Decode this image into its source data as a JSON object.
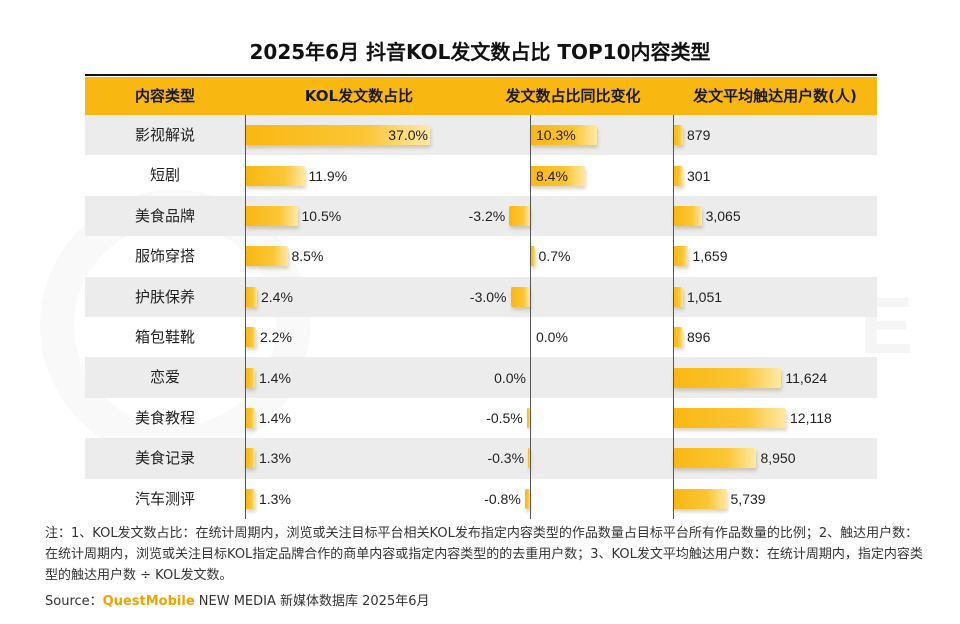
{
  "title": "2025年6月 抖音KOL发文数占比 TOP10内容类型",
  "columns": {
    "category": "内容类型",
    "share": "KOL发文数占比",
    "yoy": "发文数占比同比变化",
    "reach": "发文平均触达用户数(人)"
  },
  "chart_data": {
    "type": "bar",
    "categories": [
      "影视解说",
      "短剧",
      "美食品牌",
      "服饰穿搭",
      "护肤保养",
      "箱包鞋靴",
      "恋爱",
      "美食教程",
      "美食记录",
      "汽车测评"
    ],
    "series": [
      {
        "name": "KOL发文数占比",
        "values": [
          37.0,
          11.9,
          10.5,
          8.5,
          2.4,
          2.2,
          1.4,
          1.4,
          1.3,
          1.3
        ],
        "labels": [
          "37.0%",
          "11.9%",
          "10.5%",
          "8.5%",
          "2.4%",
          "2.2%",
          "1.4%",
          "1.4%",
          "1.3%",
          "1.3%"
        ]
      },
      {
        "name": "发文数占比同比变化",
        "values": [
          10.3,
          8.4,
          -3.2,
          0.7,
          -3.0,
          0.0,
          0.0,
          -0.5,
          -0.3,
          -0.8
        ],
        "labels": [
          "10.3%",
          "8.4%",
          "-3.2%",
          "0.7%",
          "-3.0%",
          "0.0%",
          "0.0%",
          "-0.5%",
          "-0.3%",
          "-0.8%"
        ]
      },
      {
        "name": "发文平均触达用户数(人)",
        "values": [
          879,
          301,
          3065,
          1659,
          1051,
          896,
          11624,
          12118,
          8950,
          5739
        ],
        "labels": [
          "879",
          "301",
          "3,065",
          "1,659",
          "1,051",
          "896",
          "11,624",
          "12,118",
          "8,950",
          "5,739"
        ]
      }
    ]
  },
  "note": "注：1、KOL发文数占比：在统计周期内，浏览或关注目标平台相关KOL发布指定内容类型的作品数量占目标平台所有作品数量的比例；2、触达用户数：在统计周期内，浏览或关注目标KOL指定品牌合作的商单内容或指定内容类型的的去重用户数；3、KOL发文平均触达用户数：在统计周期内，指定内容类型的触达用户数 ÷ KOL发文数。",
  "source": {
    "prefix": "Source：",
    "brand": "QuestMobile",
    "rest": " NEW MEDIA 新媒体数据库 2025年6月"
  },
  "colors": {
    "accent": "#f9b712",
    "header_bg": "#f9b712",
    "row_shade": "#ececec"
  }
}
